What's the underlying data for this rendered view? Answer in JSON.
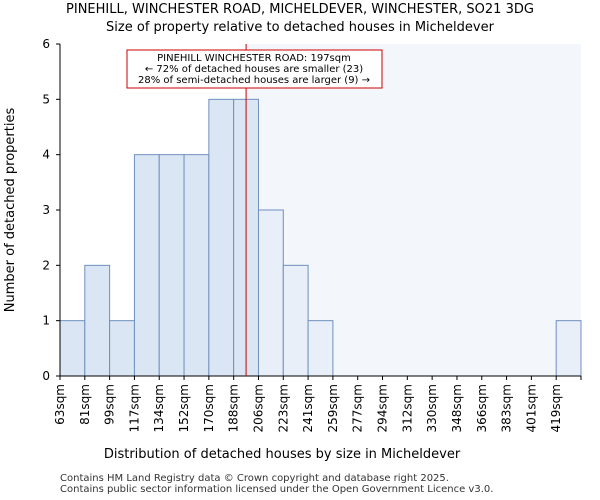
{
  "header": {
    "title_line1": "PINEHILL, WINCHESTER ROAD, MICHELDEVER, WINCHESTER, SO21 3DG",
    "title_line2": "Size of property relative to detached houses in Micheldever"
  },
  "footer": {
    "line1": "Contains HM Land Registry data © Crown copyright and database right 2025.",
    "line2": "Contains public sector information licensed under the Open Government Licence v3.0."
  },
  "chart_data": {
    "type": "bar",
    "title": "Size of property relative to detached houses in Micheldever",
    "xlabel": "Distribution of detached houses by size in Micheldever",
    "ylabel": "Number of detached properties",
    "categories": [
      "63sqm",
      "81sqm",
      "99sqm",
      "117sqm",
      "134sqm",
      "152sqm",
      "170sqm",
      "188sqm",
      "206sqm",
      "223sqm",
      "241sqm",
      "259sqm",
      "277sqm",
      "294sqm",
      "312sqm",
      "330sqm",
      "348sqm",
      "366sqm",
      "383sqm",
      "401sqm",
      "419sqm"
    ],
    "values": [
      1,
      2,
      1,
      4,
      4,
      4,
      5,
      5,
      3,
      2,
      1,
      0,
      0,
      0,
      0,
      0,
      0,
      0,
      0,
      0,
      1
    ],
    "ylim": [
      0,
      6
    ],
    "yticks": [
      0,
      1,
      2,
      3,
      4,
      5,
      6
    ],
    "property_marker": {
      "value_sqm": 197,
      "bin_position": 7.5
    },
    "annotation": {
      "line1": "PINEHILL WINCHESTER ROAD: 197sqm",
      "line2": "← 72% of detached houses are smaller (23)",
      "line3": "28% of semi-detached houses are larger (9) →"
    },
    "colors": {
      "bar_fill_main": "#dbe6f4",
      "bar_fill_faded": "#e9eff8",
      "bar_edge": "#6f8fbf",
      "marker_line": "#cc0000",
      "annotation_border": "#cc0000"
    }
  }
}
